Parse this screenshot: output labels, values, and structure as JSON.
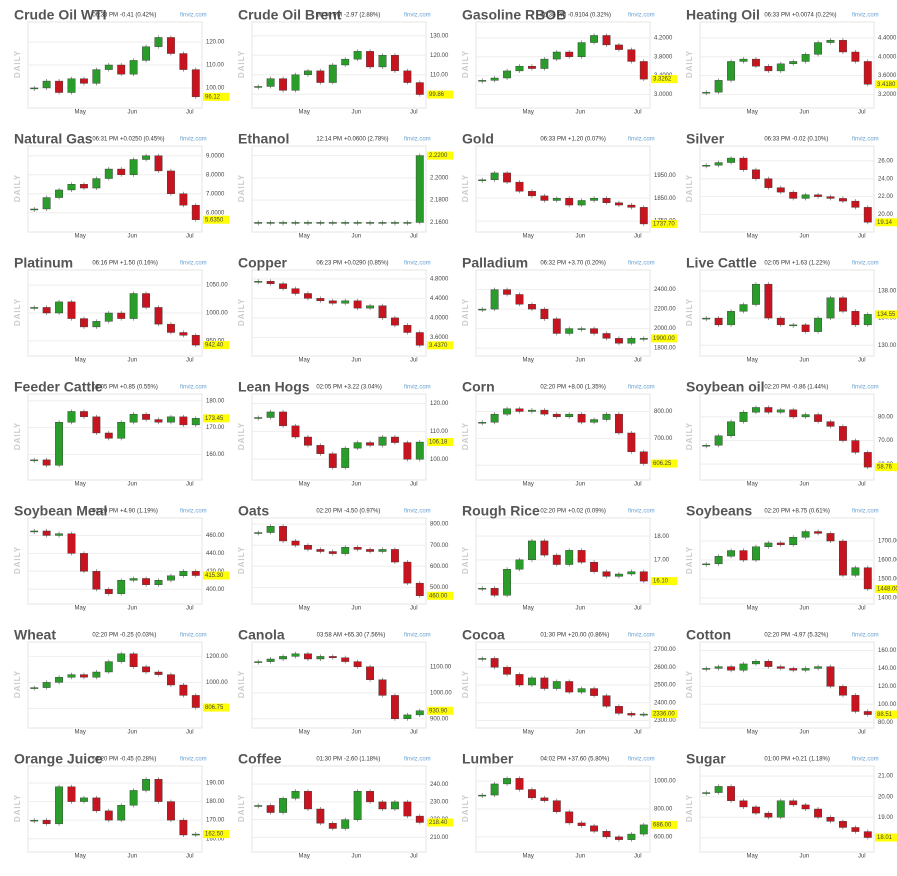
{
  "source": "finviz.com",
  "period": "DAILY",
  "months": [
    "May",
    "Jun",
    "Jul"
  ],
  "chart_data": [
    {
      "type": "candlestick",
      "title": "Crude Oil WTI",
      "time": "06:33 PM",
      "change": "-0.41 (0.42%)",
      "ylim": [
        93,
        127
      ],
      "yticks": [
        {
          "value": 100,
          "label": "100.00"
        },
        {
          "value": 110,
          "label": "110.00"
        },
        {
          "value": 120,
          "label": "120.00"
        }
      ],
      "closes": [
        100,
        103,
        98,
        104,
        102,
        108,
        110,
        106,
        112,
        118,
        122,
        115,
        108,
        96.12
      ]
    },
    {
      "type": "candlestick",
      "title": "Crude Oil Brent",
      "time": "06:30 PM",
      "change": "-2.97 (2.88%)",
      "ylim": [
        95,
        135
      ],
      "yticks": [
        {
          "value": 100,
          "label": "100.00"
        },
        {
          "value": 110,
          "label": "110.00"
        },
        {
          "value": 120,
          "label": "120.00"
        },
        {
          "value": 130,
          "label": "130.00"
        }
      ],
      "closes": [
        104,
        108,
        102,
        110,
        112,
        106,
        115,
        118,
        122,
        114,
        120,
        112,
        106,
        99.86
      ]
    },
    {
      "type": "candlestick",
      "title": "Gasoline RBOB",
      "time": "06:38 PM",
      "change": "-0.9104 (0.32%)",
      "ylim": [
        2.8,
        4.45
      ],
      "yticks": [
        {
          "value": 3,
          "label": "3.0000"
        },
        {
          "value": 3.4,
          "label": "3.4000"
        },
        {
          "value": 3.8,
          "label": "3.8000"
        },
        {
          "value": 4.2,
          "label": "4.2000"
        }
      ],
      "closes": [
        3.3,
        3.35,
        3.5,
        3.6,
        3.55,
        3.75,
        3.9,
        3.8,
        4.1,
        4.25,
        4.05,
        3.95,
        3.7,
        3.3262
      ]
    },
    {
      "type": "candlestick",
      "title": "Heating Oil",
      "time": "06:33 PM",
      "change": "+0.0074 (0.22%)",
      "ylim": [
        3,
        4.65
      ],
      "yticks": [
        {
          "value": 3.2,
          "label": "3.2000"
        },
        {
          "value": 3.6,
          "label": "3.6000"
        },
        {
          "value": 4,
          "label": "4.0000"
        },
        {
          "value": 4.4,
          "label": "4.4000"
        }
      ],
      "closes": [
        3.25,
        3.5,
        3.9,
        3.95,
        3.8,
        3.7,
        3.85,
        3.9,
        4.05,
        4.3,
        4.35,
        4.1,
        3.9,
        3.418
      ],
      "price_label": "3.4180"
    },
    {
      "type": "candlestick",
      "title": "Natural Gas",
      "time": "06:31 PM",
      "change": "+0.0250 (0.45%)",
      "ylim": [
        5.2,
        9.3
      ],
      "yticks": [
        {
          "value": 6,
          "label": "6.0000"
        },
        {
          "value": 7,
          "label": "7.0000"
        },
        {
          "value": 8,
          "label": "8.0000"
        },
        {
          "value": 9,
          "label": "9.0000"
        }
      ],
      "closes": [
        6.2,
        6.8,
        7.2,
        7.5,
        7.3,
        7.8,
        8.3,
        8,
        8.8,
        9,
        8.2,
        7,
        6.4,
        5.635
      ],
      "price_label": "5.6350"
    },
    {
      "type": "candlestick",
      "title": "Ethanol",
      "time": "12:14 PM",
      "change": "+0.0600 (2.78%)",
      "ylim": [
        2.155,
        2.225
      ],
      "yticks": [
        {
          "value": 2.16,
          "label": "2.1600"
        },
        {
          "value": 2.18,
          "label": "2.1800"
        },
        {
          "value": 2.2,
          "label": "2.2000"
        },
        {
          "value": 2.22,
          "label": "2.2200"
        }
      ],
      "closes": [
        2.16,
        2.16,
        2.16,
        2.16,
        2.16,
        2.16,
        2.16,
        2.16,
        2.16,
        2.16,
        2.16,
        2.16,
        2.16,
        2.22
      ],
      "price_label": "2.2200"
    },
    {
      "type": "candlestick",
      "title": "Gold",
      "time": "06:33 PM",
      "change": "+1.20 (0.07%)",
      "ylim": [
        1720,
        2060
      ],
      "yticks": [
        {
          "value": 1750,
          "label": "1750.00"
        },
        {
          "value": 1850,
          "label": "1850.00"
        },
        {
          "value": 1950,
          "label": "1950.00"
        }
      ],
      "closes": [
        1930,
        1960,
        1920,
        1880,
        1860,
        1840,
        1850,
        1820,
        1840,
        1850,
        1830,
        1820,
        1810,
        1737.7
      ],
      "price_label": "1737.70"
    },
    {
      "type": "candlestick",
      "title": "Silver",
      "time": "06:33 PM",
      "change": "-0.02 (0.10%)",
      "ylim": [
        18.5,
        27.2
      ],
      "yticks": [
        {
          "value": 20,
          "label": "20.00"
        },
        {
          "value": 22,
          "label": "22.00"
        },
        {
          "value": 24,
          "label": "24.00"
        },
        {
          "value": 26,
          "label": "26.00"
        }
      ],
      "closes": [
        25.5,
        25.8,
        26.3,
        25,
        24,
        23,
        22.5,
        21.8,
        22.2,
        22,
        21.8,
        21.5,
        20.8,
        19.14
      ]
    },
    {
      "type": "candlestick",
      "title": "Platinum",
      "time": "06:16 PM",
      "change": "+1.50 (0.16%)",
      "ylim": [
        930,
        1070
      ],
      "yticks": [
        {
          "value": 950,
          "label": "950.00"
        },
        {
          "value": 1000,
          "label": "1000.00"
        },
        {
          "value": 1050,
          "label": "1050.00"
        }
      ],
      "closes": [
        1010,
        1000,
        1020,
        990,
        975,
        985,
        1000,
        990,
        1035,
        1010,
        980,
        965,
        960,
        942.4
      ],
      "price_label": "942.40"
    },
    {
      "type": "candlestick",
      "title": "Copper",
      "time": "06:23 PM",
      "change": "+0.0290 (0.85%)",
      "ylim": [
        3.3,
        4.9
      ],
      "yticks": [
        {
          "value": 3.6,
          "label": "3.6000"
        },
        {
          "value": 4,
          "label": "4.0000"
        },
        {
          "value": 4.4,
          "label": "4.4000"
        },
        {
          "value": 4.8,
          "label": "4.8000"
        }
      ],
      "closes": [
        4.75,
        4.7,
        4.6,
        4.5,
        4.4,
        4.35,
        4.3,
        4.35,
        4.2,
        4.25,
        4,
        3.85,
        3.7,
        3.437
      ],
      "price_label": "3.4370"
    },
    {
      "type": "candlestick",
      "title": "Palladium",
      "time": "06:32 PM",
      "change": "+3.70 (0.20%)",
      "ylim": [
        1760,
        2560
      ],
      "yticks": [
        {
          "value": 1800,
          "label": "1800.00"
        },
        {
          "value": 2000,
          "label": "2000.00"
        },
        {
          "value": 2200,
          "label": "2200.00"
        },
        {
          "value": 2400,
          "label": "2400.00"
        }
      ],
      "closes": [
        2200,
        2400,
        2350,
        2250,
        2200,
        2100,
        1950,
        2000,
        2000,
        1950,
        1900,
        1850,
        1900,
        1900
      ],
      "price_label": "1900.00"
    },
    {
      "type": "candlestick",
      "title": "Live Cattle",
      "time": "02:05 PM",
      "change": "+1.63 (1.22%)",
      "ylim": [
        129,
        140.5
      ],
      "yticks": [
        {
          "value": 130,
          "label": "130.00"
        },
        {
          "value": 134,
          "label": "134.00"
        },
        {
          "value": 138,
          "label": "138.00"
        }
      ],
      "closes": [
        134,
        133,
        135,
        136,
        139,
        134,
        133,
        133,
        132,
        134,
        137,
        135,
        133,
        134.55
      ]
    },
    {
      "type": "candlestick",
      "title": "Feeder Cattle",
      "time": "02:05 PM",
      "change": "+0.85 (0.55%)",
      "ylim": [
        152,
        181
      ],
      "yticks": [
        {
          "value": 160,
          "label": "160.00"
        },
        {
          "value": 170,
          "label": "170.00"
        },
        {
          "value": 180,
          "label": "180.00"
        }
      ],
      "closes": [
        158,
        156,
        172,
        176,
        174,
        168,
        166,
        172,
        175,
        173,
        172,
        174,
        171,
        173.45
      ]
    },
    {
      "type": "candlestick",
      "title": "Lean Hogs",
      "time": "02:05 PM",
      "change": "+3.22 (3.04%)",
      "ylim": [
        94,
        122
      ],
      "yticks": [
        {
          "value": 100,
          "label": "100.00"
        },
        {
          "value": 110,
          "label": "110.00"
        },
        {
          "value": 120,
          "label": "120.00"
        }
      ],
      "closes": [
        115,
        117,
        112,
        108,
        105,
        102,
        97,
        104,
        106,
        105,
        108,
        106,
        100,
        106.18
      ]
    },
    {
      "type": "candlestick",
      "title": "Corn",
      "time": "02:20 PM",
      "change": "+8.00 (1.35%)",
      "ylim": [
        560,
        850
      ],
      "yticks": [
        {
          "value": 600,
          "label": "600.00"
        },
        {
          "value": 700,
          "label": "700.00"
        },
        {
          "value": 800,
          "label": "800.00"
        }
      ],
      "closes": [
        760,
        790,
        810,
        800,
        805,
        790,
        780,
        790,
        760,
        770,
        790,
        720,
        650,
        606.25
      ]
    },
    {
      "type": "candlestick",
      "title": "Soybean oil",
      "time": "02:20 PM",
      "change": "-0.86 (1.44%)",
      "ylim": [
        55,
        88
      ],
      "yticks": [
        {
          "value": 60,
          "label": "60.00"
        },
        {
          "value": 70,
          "label": "70.00"
        },
        {
          "value": 80,
          "label": "80.00"
        }
      ],
      "closes": [
        68,
        72,
        78,
        82,
        84,
        82,
        83,
        80,
        81,
        78,
        76,
        70,
        65,
        58.76
      ]
    },
    {
      "type": "candlestick",
      "title": "Soybean Meal",
      "time": "02:20 PM",
      "change": "+4.90 (1.19%)",
      "ylim": [
        388,
        475
      ],
      "yticks": [
        {
          "value": 400,
          "label": "400.00"
        },
        {
          "value": 420,
          "label": "420.00"
        },
        {
          "value": 440,
          "label": "440.00"
        },
        {
          "value": 460,
          "label": "460.00"
        }
      ],
      "closes": [
        465,
        460,
        462,
        440,
        420,
        400,
        395,
        410,
        412,
        405,
        410,
        415,
        420,
        415.3
      ],
      "price_label": "415.30"
    },
    {
      "type": "candlestick",
      "title": "Oats",
      "time": "02:20 PM",
      "change": "-4.50 (0.97%)",
      "ylim": [
        440,
        810
      ],
      "yticks": [
        {
          "value": 500,
          "label": "500.00"
        },
        {
          "value": 600,
          "label": "600.00"
        },
        {
          "value": 700,
          "label": "700.00"
        },
        {
          "value": 800,
          "label": "800.00"
        }
      ],
      "closes": [
        760,
        790,
        720,
        700,
        680,
        670,
        660,
        690,
        680,
        670,
        680,
        620,
        520,
        460
      ],
      "price_label": "460.00"
    },
    {
      "type": "candlestick",
      "title": "Rough Rice",
      "time": "02:20 PM",
      "change": "+0.02 (0.09%)",
      "ylim": [
        15.3,
        18.6
      ],
      "yticks": [
        {
          "value": 16,
          "label": "16.00"
        },
        {
          "value": 17,
          "label": "17.00"
        },
        {
          "value": 18,
          "label": "18.00"
        }
      ],
      "closes": [
        15.8,
        15.5,
        16.6,
        17,
        17.8,
        17.2,
        16.8,
        17.4,
        16.9,
        16.5,
        16.3,
        16.4,
        16.5,
        16.1
      ],
      "price_label": "16.10"
    },
    {
      "type": "candlestick",
      "title": "Soybeans",
      "time": "02:20 PM",
      "change": "+8.75 (0.61%)",
      "ylim": [
        1390,
        1800
      ],
      "yticks": [
        {
          "value": 1400,
          "label": "1400.00"
        },
        {
          "value": 1500,
          "label": "1500.00"
        },
        {
          "value": 1600,
          "label": "1600.00"
        },
        {
          "value": 1700,
          "label": "1700.00"
        }
      ],
      "closes": [
        1580,
        1620,
        1650,
        1600,
        1670,
        1690,
        1680,
        1720,
        1750,
        1740,
        1700,
        1520,
        1560,
        1448
      ],
      "price_label": "1448.00"
    },
    {
      "type": "candlestick",
      "title": "Wheat",
      "time": "02:20 PM",
      "change": "-0.25 (0.03%)",
      "ylim": [
        680,
        1280
      ],
      "yticks": [
        {
          "value": 800,
          "label": "800.00"
        },
        {
          "value": 1000,
          "label": "1000.00"
        },
        {
          "value": 1200,
          "label": "1200.00"
        }
      ],
      "closes": [
        960,
        1000,
        1040,
        1060,
        1040,
        1080,
        1160,
        1220,
        1120,
        1080,
        1060,
        980,
        900,
        806.75
      ]
    },
    {
      "type": "candlestick",
      "title": "Canola",
      "time": "03:58 AM",
      "change": "+65.30 (7.56%)",
      "ylim": [
        880,
        1180
      ],
      "yticks": [
        {
          "value": 900,
          "label": "900.00"
        },
        {
          "value": 1000,
          "label": "1000.00"
        },
        {
          "value": 1100,
          "label": "1100.00"
        }
      ],
      "closes": [
        1120,
        1130,
        1140,
        1150,
        1130,
        1140,
        1135,
        1120,
        1100,
        1050,
        990,
        900,
        915,
        930.9
      ],
      "price_label": "930.90"
    },
    {
      "type": "candlestick",
      "title": "Cocoa",
      "time": "01:30 PM",
      "change": "+20.00 (0.86%)",
      "ylim": [
        2280,
        2720
      ],
      "yticks": [
        {
          "value": 2300,
          "label": "2300.00"
        },
        {
          "value": 2400,
          "label": "2400.00"
        },
        {
          "value": 2500,
          "label": "2500.00"
        },
        {
          "value": 2600,
          "label": "2600.00"
        },
        {
          "value": 2700,
          "label": "2700.00"
        }
      ],
      "closes": [
        2650,
        2600,
        2560,
        2500,
        2540,
        2480,
        2520,
        2460,
        2480,
        2440,
        2380,
        2340,
        2330,
        2336
      ],
      "price_label": "2336.00"
    },
    {
      "type": "candlestick",
      "title": "Cotton",
      "time": "02:20 PM",
      "change": "-4.97 (5.32%)",
      "ylim": [
        78,
        165
      ],
      "yticks": [
        {
          "value": 80,
          "label": "80.00"
        },
        {
          "value": 100,
          "label": "100.00"
        },
        {
          "value": 120,
          "label": "120.00"
        },
        {
          "value": 140,
          "label": "140.00"
        },
        {
          "value": 160,
          "label": "160.00"
        }
      ],
      "closes": [
        140,
        142,
        138,
        145,
        148,
        142,
        140,
        138,
        140,
        142,
        120,
        110,
        92,
        88.51
      ]
    },
    {
      "type": "candlestick",
      "title": "Orange Juice",
      "time": "02:20 PM",
      "change": "-0.45 (0.28%)",
      "ylim": [
        155,
        197
      ],
      "yticks": [
        {
          "value": 160,
          "label": "160.00"
        },
        {
          "value": 170,
          "label": "170.00"
        },
        {
          "value": 180,
          "label": "180.00"
        },
        {
          "value": 190,
          "label": "190.00"
        }
      ],
      "closes": [
        170,
        168,
        188,
        180,
        182,
        175,
        170,
        178,
        186,
        192,
        180,
        170,
        162,
        162.5
      ],
      "price_label": "162.50"
    },
    {
      "type": "candlestick",
      "title": "Coffee",
      "time": "01:30 PM",
      "change": "-2.60 (1.18%)",
      "ylim": [
        204,
        248
      ],
      "yticks": [
        {
          "value": 210,
          "label": "210.00"
        },
        {
          "value": 220,
          "label": "220.00"
        },
        {
          "value": 230,
          "label": "230.00"
        },
        {
          "value": 240,
          "label": "240.00"
        }
      ],
      "closes": [
        228,
        224,
        232,
        236,
        226,
        218,
        215,
        220,
        236,
        230,
        226,
        230,
        222,
        218.4
      ],
      "price_label": "218.40"
    },
    {
      "type": "candlestick",
      "title": "Lumber",
      "time": "04:02 PM",
      "change": "+37.60 (5.80%)",
      "ylim": [
        520,
        1080
      ],
      "yticks": [
        {
          "value": 600,
          "label": "600.00"
        },
        {
          "value": 800,
          "label": "800.00"
        },
        {
          "value": 1000,
          "label": "1000.00"
        }
      ],
      "closes": [
        900,
        980,
        1020,
        940,
        880,
        860,
        780,
        700,
        680,
        640,
        600,
        580,
        620,
        686
      ],
      "price_label": "686.00"
    },
    {
      "type": "candlestick",
      "title": "Sugar",
      "time": "01:00 PM",
      "change": "+0.21 (1.18%)",
      "ylim": [
        17.5,
        21.3
      ],
      "yticks": [
        {
          "value": 18,
          "label": "18.00"
        },
        {
          "value": 19,
          "label": "19.00"
        },
        {
          "value": 20,
          "label": "20.00"
        },
        {
          "value": 21,
          "label": "21.00"
        }
      ],
      "closes": [
        20.2,
        20.5,
        19.8,
        19.5,
        19.2,
        19,
        19.8,
        19.6,
        19.4,
        19,
        18.8,
        18.5,
        18.3,
        18.01
      ]
    }
  ]
}
